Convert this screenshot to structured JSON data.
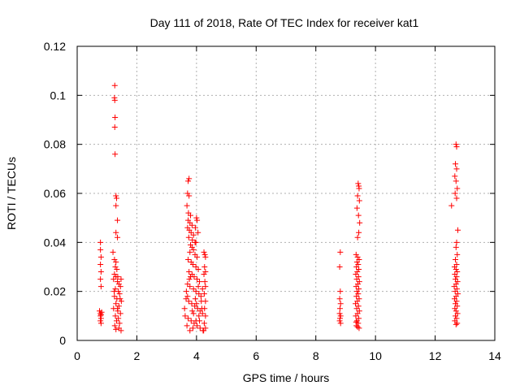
{
  "chart_data": {
    "type": "scatter",
    "title": "Day 111 of 2018, Rate Of TEC Index for receiver kat1",
    "xlabel": "GPS time / hours",
    "ylabel": "ROTI / TECUs",
    "xlim": [
      0,
      14
    ],
    "ylim": [
      0,
      0.12
    ],
    "xticks": [
      0,
      2,
      4,
      6,
      8,
      10,
      12,
      14
    ],
    "xtick_labels": [
      "0",
      "2",
      "4",
      "6",
      "8",
      "10",
      "12",
      "14"
    ],
    "yticks": [
      0,
      0.02,
      0.04,
      0.06,
      0.08,
      0.1,
      0.12
    ],
    "ytick_labels": [
      "0",
      "0.02",
      "0.04",
      "0.06",
      "0.08",
      "0.1",
      "0.12"
    ],
    "grid": true,
    "marker": "+",
    "marker_color": "#ff0000",
    "series": [
      {
        "name": "ROTI",
        "points": [
          [
            0.78,
            0.04
          ],
          [
            0.78,
            0.037
          ],
          [
            0.8,
            0.034
          ],
          [
            0.78,
            0.031
          ],
          [
            0.8,
            0.028
          ],
          [
            0.78,
            0.025
          ],
          [
            0.8,
            0.022
          ],
          [
            0.75,
            0.012
          ],
          [
            0.78,
            0.011
          ],
          [
            0.8,
            0.0105
          ],
          [
            0.82,
            0.0115
          ],
          [
            0.78,
            0.01
          ],
          [
            0.8,
            0.009
          ],
          [
            0.78,
            0.008
          ],
          [
            0.8,
            0.007
          ],
          [
            1.26,
            0.104
          ],
          [
            1.25,
            0.099
          ],
          [
            1.26,
            0.098
          ],
          [
            1.27,
            0.091
          ],
          [
            1.26,
            0.087
          ],
          [
            1.27,
            0.076
          ],
          [
            1.3,
            0.059
          ],
          [
            1.32,
            0.058
          ],
          [
            1.3,
            0.055
          ],
          [
            1.35,
            0.049
          ],
          [
            1.3,
            0.044
          ],
          [
            1.35,
            0.042
          ],
          [
            1.2,
            0.036
          ],
          [
            1.25,
            0.033
          ],
          [
            1.3,
            0.032
          ],
          [
            1.28,
            0.03
          ],
          [
            1.33,
            0.029
          ],
          [
            1.25,
            0.027
          ],
          [
            1.3,
            0.026
          ],
          [
            1.22,
            0.025
          ],
          [
            1.35,
            0.024
          ],
          [
            1.4,
            0.023
          ],
          [
            1.45,
            0.022
          ],
          [
            1.28,
            0.021
          ],
          [
            1.38,
            0.02
          ],
          [
            1.42,
            0.019
          ],
          [
            1.25,
            0.018
          ],
          [
            1.33,
            0.017
          ],
          [
            1.48,
            0.016
          ],
          [
            1.3,
            0.015
          ],
          [
            1.4,
            0.014
          ],
          [
            1.22,
            0.013
          ],
          [
            1.36,
            0.012
          ],
          [
            1.45,
            0.011
          ],
          [
            1.28,
            0.01
          ],
          [
            1.38,
            0.009
          ],
          [
            1.32,
            0.008
          ],
          [
            1.42,
            0.007
          ],
          [
            1.26,
            0.006
          ],
          [
            1.4,
            0.005
          ],
          [
            1.47,
            0.004
          ],
          [
            1.3,
            0.0045
          ],
          [
            1.35,
            0.013
          ],
          [
            1.44,
            0.017
          ],
          [
            1.24,
            0.02
          ],
          [
            1.47,
            0.025
          ],
          [
            1.36,
            0.026
          ],
          [
            3.75,
            0.066
          ],
          [
            3.72,
            0.065
          ],
          [
            3.7,
            0.06
          ],
          [
            3.75,
            0.059
          ],
          [
            3.68,
            0.055
          ],
          [
            3.73,
            0.052
          ],
          [
            3.8,
            0.051
          ],
          [
            3.72,
            0.049
          ],
          [
            3.78,
            0.048
          ],
          [
            3.85,
            0.047
          ],
          [
            3.7,
            0.046
          ],
          [
            3.76,
            0.045
          ],
          [
            3.82,
            0.044
          ],
          [
            3.9,
            0.043
          ],
          [
            3.74,
            0.042
          ],
          [
            3.86,
            0.041
          ],
          [
            3.95,
            0.04
          ],
          [
            3.8,
            0.039
          ],
          [
            4.0,
            0.05
          ],
          [
            4.02,
            0.049
          ],
          [
            3.96,
            0.046
          ],
          [
            4.05,
            0.044
          ],
          [
            3.98,
            0.04
          ],
          [
            3.85,
            0.038
          ],
          [
            3.9,
            0.037
          ],
          [
            3.78,
            0.036
          ],
          [
            3.95,
            0.035
          ],
          [
            4.02,
            0.034
          ],
          [
            3.72,
            0.033
          ],
          [
            3.82,
            0.032
          ],
          [
            3.88,
            0.031
          ],
          [
            3.98,
            0.03
          ],
          [
            4.06,
            0.029
          ],
          [
            3.75,
            0.028
          ],
          [
            3.85,
            0.027
          ],
          [
            3.92,
            0.026
          ],
          [
            4.02,
            0.025
          ],
          [
            4.1,
            0.024
          ],
          [
            3.7,
            0.023
          ],
          [
            3.78,
            0.022
          ],
          [
            3.9,
            0.021
          ],
          [
            3.98,
            0.02
          ],
          [
            4.08,
            0.019
          ],
          [
            4.15,
            0.018
          ],
          [
            3.65,
            0.017
          ],
          [
            3.74,
            0.016
          ],
          [
            3.84,
            0.015
          ],
          [
            3.94,
            0.014
          ],
          [
            4.04,
            0.013
          ],
          [
            4.12,
            0.012
          ],
          [
            4.2,
            0.011
          ],
          [
            3.62,
            0.01
          ],
          [
            3.72,
            0.009
          ],
          [
            3.82,
            0.008
          ],
          [
            3.92,
            0.007
          ],
          [
            4.02,
            0.006
          ],
          [
            4.12,
            0.005
          ],
          [
            4.22,
            0.004
          ],
          [
            3.68,
            0.006
          ],
          [
            3.78,
            0.004
          ],
          [
            3.88,
            0.005
          ],
          [
            3.98,
            0.008
          ],
          [
            4.08,
            0.01
          ],
          [
            4.18,
            0.013
          ],
          [
            3.66,
            0.02
          ],
          [
            3.76,
            0.025
          ],
          [
            3.86,
            0.012
          ],
          [
            3.96,
            0.017
          ],
          [
            4.06,
            0.022
          ],
          [
            4.16,
            0.016
          ],
          [
            3.6,
            0.013
          ],
          [
            3.7,
            0.018
          ],
          [
            3.8,
            0.026
          ],
          [
            3.9,
            0.011
          ],
          [
            4.0,
            0.015
          ],
          [
            4.1,
            0.008
          ],
          [
            4.2,
            0.021
          ],
          [
            4.25,
            0.036
          ],
          [
            4.28,
            0.035
          ],
          [
            4.3,
            0.034
          ],
          [
            4.27,
            0.03
          ],
          [
            4.3,
            0.028
          ],
          [
            4.25,
            0.027
          ],
          [
            4.28,
            0.024
          ],
          [
            4.3,
            0.022
          ],
          [
            4.26,
            0.019
          ],
          [
            4.3,
            0.016
          ],
          [
            4.27,
            0.013
          ],
          [
            4.3,
            0.01
          ],
          [
            4.26,
            0.007
          ],
          [
            4.3,
            0.005
          ],
          [
            4.24,
            0.004
          ],
          [
            8.82,
            0.036
          ],
          [
            8.8,
            0.03
          ],
          [
            8.82,
            0.02
          ],
          [
            8.8,
            0.017
          ],
          [
            8.83,
            0.015
          ],
          [
            8.81,
            0.013
          ],
          [
            8.8,
            0.011
          ],
          [
            8.83,
            0.01
          ],
          [
            8.81,
            0.009
          ],
          [
            8.8,
            0.008
          ],
          [
            8.83,
            0.007
          ],
          [
            9.42,
            0.064
          ],
          [
            9.44,
            0.063
          ],
          [
            9.45,
            0.062
          ],
          [
            9.4,
            0.059
          ],
          [
            9.46,
            0.057
          ],
          [
            9.38,
            0.054
          ],
          [
            9.43,
            0.051
          ],
          [
            9.47,
            0.048
          ],
          [
            9.44,
            0.044
          ],
          [
            9.4,
            0.042
          ],
          [
            9.35,
            0.035
          ],
          [
            9.4,
            0.034
          ],
          [
            9.45,
            0.033
          ],
          [
            9.38,
            0.032
          ],
          [
            9.42,
            0.031
          ],
          [
            9.36,
            0.03
          ],
          [
            9.44,
            0.029
          ],
          [
            9.39,
            0.028
          ],
          [
            9.34,
            0.027
          ],
          [
            9.43,
            0.026
          ],
          [
            9.37,
            0.025
          ],
          [
            9.46,
            0.024
          ],
          [
            9.41,
            0.023
          ],
          [
            9.35,
            0.022
          ],
          [
            9.44,
            0.021
          ],
          [
            9.38,
            0.02
          ],
          [
            9.42,
            0.019
          ],
          [
            9.36,
            0.018
          ],
          [
            9.45,
            0.017
          ],
          [
            9.39,
            0.016
          ],
          [
            9.33,
            0.015
          ],
          [
            9.43,
            0.014
          ],
          [
            9.37,
            0.013
          ],
          [
            9.46,
            0.012
          ],
          [
            9.4,
            0.011
          ],
          [
            9.34,
            0.01
          ],
          [
            9.44,
            0.009
          ],
          [
            9.38,
            0.008
          ],
          [
            9.42,
            0.007
          ],
          [
            9.36,
            0.006
          ],
          [
            9.45,
            0.005
          ],
          [
            9.4,
            0.0055
          ],
          [
            9.35,
            0.0075
          ],
          [
            12.55,
            0.055
          ],
          [
            12.7,
            0.08
          ],
          [
            12.72,
            0.079
          ],
          [
            12.68,
            0.072
          ],
          [
            12.72,
            0.07
          ],
          [
            12.66,
            0.067
          ],
          [
            12.7,
            0.065
          ],
          [
            12.74,
            0.062
          ],
          [
            12.67,
            0.06
          ],
          [
            12.72,
            0.058
          ],
          [
            12.76,
            0.045
          ],
          [
            12.72,
            0.04
          ],
          [
            12.7,
            0.038
          ],
          [
            12.74,
            0.035
          ],
          [
            12.68,
            0.033
          ],
          [
            12.72,
            0.031
          ],
          [
            12.65,
            0.03
          ],
          [
            12.7,
            0.029
          ],
          [
            12.74,
            0.028
          ],
          [
            12.66,
            0.027
          ],
          [
            12.72,
            0.026
          ],
          [
            12.68,
            0.025
          ],
          [
            12.75,
            0.024
          ],
          [
            12.7,
            0.023
          ],
          [
            12.64,
            0.022
          ],
          [
            12.73,
            0.021
          ],
          [
            12.67,
            0.02
          ],
          [
            12.76,
            0.019
          ],
          [
            12.7,
            0.018
          ],
          [
            12.65,
            0.017
          ],
          [
            12.72,
            0.016
          ],
          [
            12.68,
            0.015
          ],
          [
            12.74,
            0.014
          ],
          [
            12.66,
            0.013
          ],
          [
            12.7,
            0.012
          ],
          [
            12.75,
            0.011
          ],
          [
            12.68,
            0.01
          ],
          [
            12.72,
            0.009
          ],
          [
            12.66,
            0.008
          ],
          [
            12.74,
            0.007
          ],
          [
            12.7,
            0.0065
          ]
        ]
      }
    ]
  }
}
